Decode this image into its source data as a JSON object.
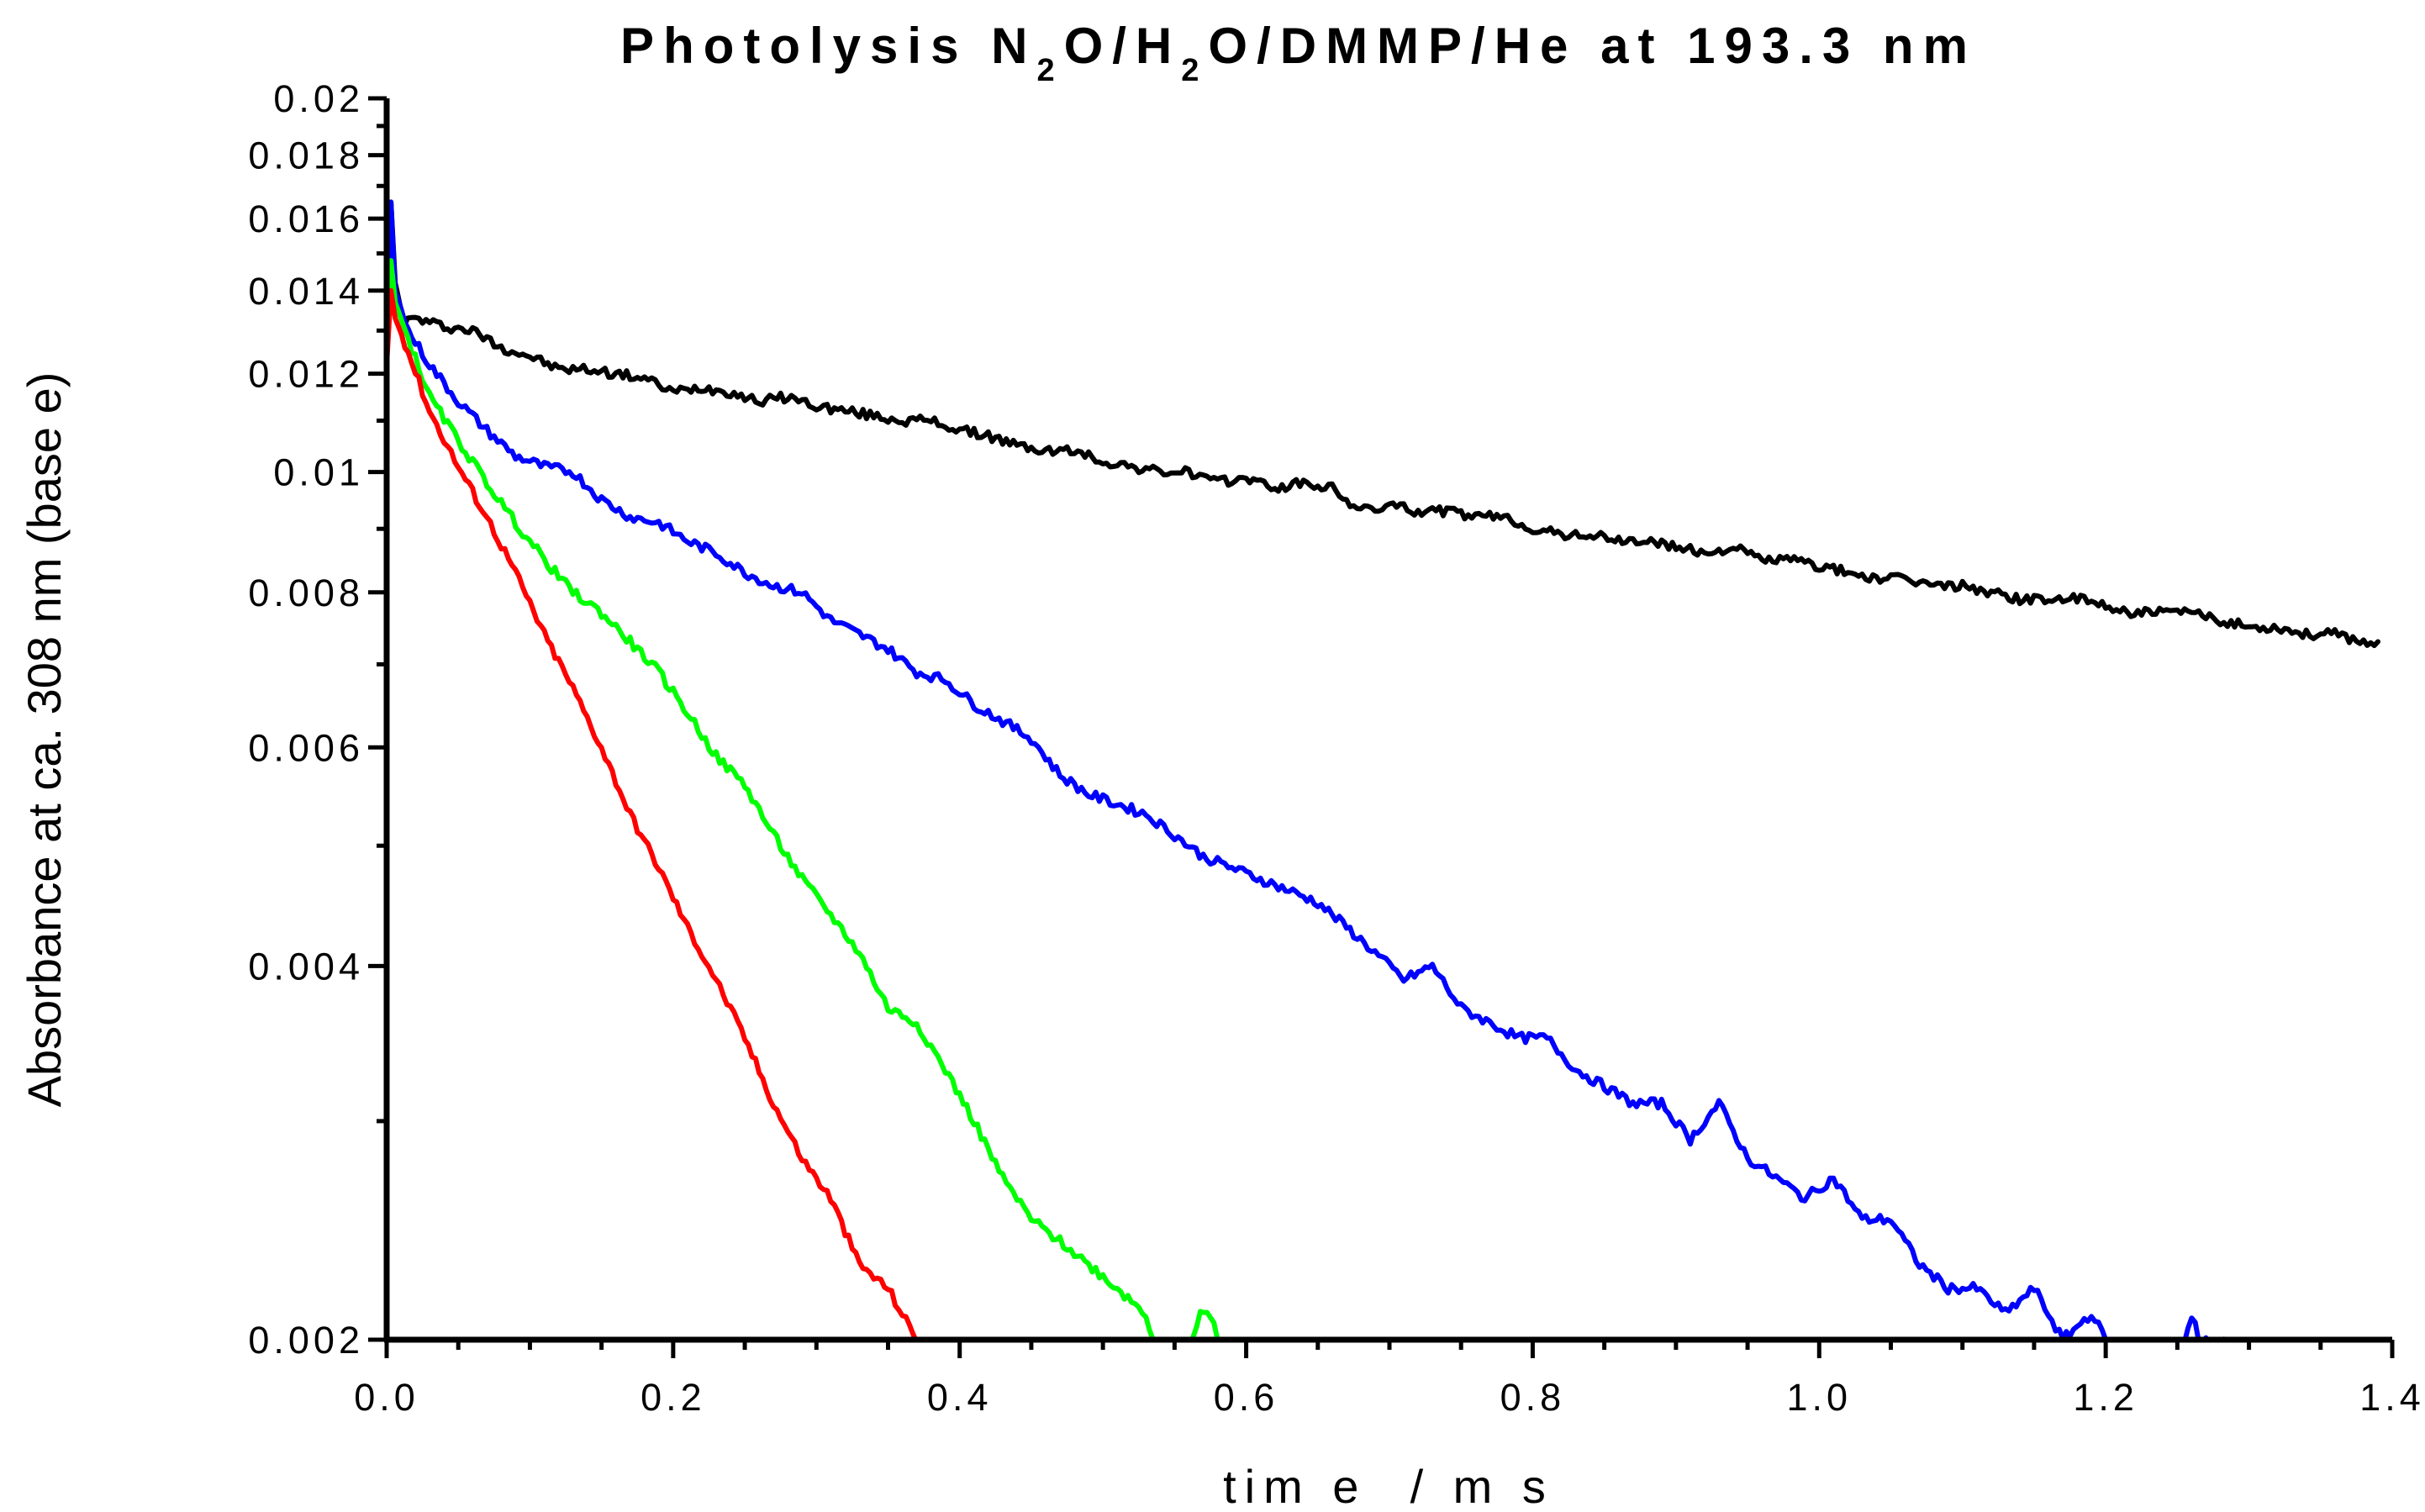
{
  "chart_data": {
    "type": "line",
    "title": {
      "parts": [
        "Photolysis N",
        "2",
        "O/H",
        "2",
        "O/DMMP/He at 193.3 nm"
      ]
    },
    "xlabel": "tim e  / m s",
    "ylabel": "Absorbance at ca. 308 nm (base e)",
    "xlim": [
      0,
      1.4
    ],
    "ylim": [
      0.002,
      0.02
    ],
    "yscale": "log",
    "grid": false,
    "legend": "none",
    "x_ticks": [
      0,
      0.2,
      0.4,
      0.6,
      0.8,
      1.0,
      1.2,
      1.4
    ],
    "x_tick_labels": [
      "0.0",
      "0.2",
      "0.4",
      "0.6",
      "0.8",
      "1.0",
      "1.2",
      "1.4"
    ],
    "y_ticks": [
      0.002,
      0.004,
      0.006,
      0.008,
      0.01,
      0.012,
      0.014,
      0.016,
      0.018,
      0.02
    ],
    "y_tick_labels": [
      "0.002",
      "0.004",
      "0.006",
      "0.008",
      "0.01",
      "0.012",
      "0.014",
      "0.016",
      "0.018",
      "0.02"
    ],
    "series": [
      {
        "name": "black",
        "color": "#000000",
        "points": [
          [
            0.0,
            0.0125
          ],
          [
            0.003,
            0.0165
          ],
          [
            0.006,
            0.0142
          ],
          [
            0.012,
            0.0132
          ],
          [
            0.02,
            0.0133
          ],
          [
            0.04,
            0.0131
          ],
          [
            0.06,
            0.013
          ],
          [
            0.08,
            0.0126
          ],
          [
            0.1,
            0.0124
          ],
          [
            0.12,
            0.0121
          ],
          [
            0.14,
            0.0121
          ],
          [
            0.16,
            0.012
          ],
          [
            0.18,
            0.0119
          ],
          [
            0.2,
            0.0116
          ],
          [
            0.22,
            0.0117
          ],
          [
            0.24,
            0.0116
          ],
          [
            0.26,
            0.0114
          ],
          [
            0.28,
            0.0115
          ],
          [
            0.3,
            0.0113
          ],
          [
            0.32,
            0.0112
          ],
          [
            0.34,
            0.0111
          ],
          [
            0.36,
            0.011
          ],
          [
            0.38,
            0.011
          ],
          [
            0.4,
            0.0108
          ],
          [
            0.42,
            0.0107
          ],
          [
            0.44,
            0.0105
          ],
          [
            0.46,
            0.0104
          ],
          [
            0.48,
            0.0104
          ],
          [
            0.5,
            0.0102
          ],
          [
            0.52,
            0.0101
          ],
          [
            0.54,
            0.01
          ],
          [
            0.56,
            0.01
          ],
          [
            0.58,
            0.0098
          ],
          [
            0.6,
            0.0099
          ],
          [
            0.62,
            0.0097
          ],
          [
            0.64,
            0.0098
          ],
          [
            0.66,
            0.0097
          ],
          [
            0.68,
            0.0093
          ],
          [
            0.7,
            0.0094
          ],
          [
            0.72,
            0.0093
          ],
          [
            0.74,
            0.0093
          ],
          [
            0.76,
            0.0092
          ],
          [
            0.78,
            0.0092
          ],
          [
            0.8,
            0.009
          ],
          [
            0.82,
            0.0089
          ],
          [
            0.84,
            0.0089
          ],
          [
            0.86,
            0.0088
          ],
          [
            0.88,
            0.0088
          ],
          [
            0.9,
            0.0087
          ],
          [
            0.92,
            0.0086
          ],
          [
            0.94,
            0.0087
          ],
          [
            0.96,
            0.0085
          ],
          [
            0.98,
            0.0085
          ],
          [
            1.0,
            0.0084
          ],
          [
            1.02,
            0.0083
          ],
          [
            1.04,
            0.0082
          ],
          [
            1.06,
            0.0082
          ],
          [
            1.08,
            0.0081
          ],
          [
            1.1,
            0.0081
          ],
          [
            1.12,
            0.008
          ],
          [
            1.14,
            0.0079
          ],
          [
            1.16,
            0.0079
          ],
          [
            1.18,
            0.0079
          ],
          [
            1.2,
            0.0078
          ],
          [
            1.22,
            0.0077
          ],
          [
            1.24,
            0.0077
          ],
          [
            1.26,
            0.0077
          ],
          [
            1.28,
            0.0076
          ],
          [
            1.3,
            0.0075
          ],
          [
            1.32,
            0.0075
          ],
          [
            1.34,
            0.0074
          ],
          [
            1.36,
            0.0074
          ],
          [
            1.38,
            0.0073
          ],
          [
            1.39,
            0.0073
          ]
        ]
      },
      {
        "name": "blue",
        "color": "#0000ff",
        "points": [
          [
            0.0,
            0.013
          ],
          [
            0.003,
            0.0165
          ],
          [
            0.006,
            0.014
          ],
          [
            0.015,
            0.013
          ],
          [
            0.03,
            0.0122
          ],
          [
            0.05,
            0.0114
          ],
          [
            0.07,
            0.0108
          ],
          [
            0.09,
            0.0103
          ],
          [
            0.11,
            0.0101
          ],
          [
            0.13,
            0.01
          ],
          [
            0.15,
            0.0095
          ],
          [
            0.17,
            0.0092
          ],
          [
            0.19,
            0.0091
          ],
          [
            0.21,
            0.0088
          ],
          [
            0.23,
            0.0086
          ],
          [
            0.25,
            0.0083
          ],
          [
            0.27,
            0.0081
          ],
          [
            0.29,
            0.008
          ],
          [
            0.31,
            0.0076
          ],
          [
            0.33,
            0.0074
          ],
          [
            0.35,
            0.0072
          ],
          [
            0.37,
            0.0069
          ],
          [
            0.39,
            0.0068
          ],
          [
            0.41,
            0.0065
          ],
          [
            0.43,
            0.0063
          ],
          [
            0.45,
            0.0061
          ],
          [
            0.47,
            0.0057
          ],
          [
            0.49,
            0.0055
          ],
          [
            0.51,
            0.0054
          ],
          [
            0.53,
            0.0053
          ],
          [
            0.55,
            0.0051
          ],
          [
            0.57,
            0.0049
          ],
          [
            0.59,
            0.0048
          ],
          [
            0.61,
            0.0047
          ],
          [
            0.63,
            0.0046
          ],
          [
            0.65,
            0.0045
          ],
          [
            0.67,
            0.0043
          ],
          [
            0.69,
            0.0041
          ],
          [
            0.71,
            0.0039
          ],
          [
            0.73,
            0.004
          ],
          [
            0.75,
            0.0037
          ],
          [
            0.77,
            0.0036
          ],
          [
            0.79,
            0.0035
          ],
          [
            0.81,
            0.0035
          ],
          [
            0.83,
            0.0033
          ],
          [
            0.85,
            0.0032
          ],
          [
            0.87,
            0.0031
          ],
          [
            0.89,
            0.0031
          ],
          [
            0.91,
            0.0029
          ],
          [
            0.93,
            0.0031
          ],
          [
            0.95,
            0.0028
          ],
          [
            0.97,
            0.0027
          ],
          [
            0.99,
            0.0026
          ],
          [
            1.01,
            0.0027
          ],
          [
            1.03,
            0.0025
          ],
          [
            1.05,
            0.0025
          ],
          [
            1.07,
            0.0023
          ],
          [
            1.09,
            0.0022
          ],
          [
            1.11,
            0.0022
          ],
          [
            1.13,
            0.0021
          ],
          [
            1.15,
            0.0022
          ],
          [
            1.17,
            0.002
          ],
          [
            1.19,
            0.0021
          ],
          [
            1.2,
            0.002
          ]
        ]
      },
      {
        "name": "green",
        "color": "#00ff00",
        "points": [
          [
            0.0,
            0.0125
          ],
          [
            0.003,
            0.0148
          ],
          [
            0.006,
            0.0137
          ],
          [
            0.015,
            0.0128
          ],
          [
            0.03,
            0.0115
          ],
          [
            0.05,
            0.0106
          ],
          [
            0.07,
            0.0098
          ],
          [
            0.09,
            0.0091
          ],
          [
            0.11,
            0.0085
          ],
          [
            0.13,
            0.008
          ],
          [
            0.15,
            0.0077
          ],
          [
            0.17,
            0.0073
          ],
          [
            0.19,
            0.0069
          ],
          [
            0.21,
            0.0064
          ],
          [
            0.23,
            0.0059
          ],
          [
            0.25,
            0.0056
          ],
          [
            0.27,
            0.0051
          ],
          [
            0.29,
            0.0047
          ],
          [
            0.31,
            0.0044
          ],
          [
            0.33,
            0.0041
          ],
          [
            0.35,
            0.0037
          ],
          [
            0.37,
            0.0036
          ],
          [
            0.39,
            0.0033
          ],
          [
            0.41,
            0.003
          ],
          [
            0.43,
            0.0027
          ],
          [
            0.45,
            0.0025
          ],
          [
            0.47,
            0.0024
          ],
          [
            0.49,
            0.0023
          ],
          [
            0.51,
            0.0022
          ],
          [
            0.53,
            0.0021
          ],
          [
            0.535,
            0.002
          ]
        ]
      },
      {
        "name": "green-fragment",
        "color": "#00ff00",
        "points": [
          [
            0.563,
            0.002
          ],
          [
            0.568,
            0.0021
          ],
          [
            0.575,
            0.0021
          ],
          [
            0.58,
            0.002
          ]
        ]
      },
      {
        "name": "red",
        "color": "#ff0000",
        "points": [
          [
            0.0,
            0.0122
          ],
          [
            0.003,
            0.014
          ],
          [
            0.006,
            0.0133
          ],
          [
            0.015,
            0.0125
          ],
          [
            0.03,
            0.0112
          ],
          [
            0.05,
            0.0101
          ],
          [
            0.07,
            0.0092
          ],
          [
            0.09,
            0.0083
          ],
          [
            0.11,
            0.0074
          ],
          [
            0.13,
            0.0067
          ],
          [
            0.15,
            0.006
          ],
          [
            0.17,
            0.0053
          ],
          [
            0.19,
            0.0048
          ],
          [
            0.21,
            0.0043
          ],
          [
            0.23,
            0.0039
          ],
          [
            0.25,
            0.0035
          ],
          [
            0.27,
            0.0031
          ],
          [
            0.29,
            0.0028
          ],
          [
            0.31,
            0.0026
          ],
          [
            0.33,
            0.0023
          ],
          [
            0.35,
            0.0022
          ],
          [
            0.37,
            0.002
          ],
          [
            0.375,
            0.002
          ]
        ]
      },
      {
        "name": "blue-fragment",
        "color": "#0000ff",
        "points": [
          [
            1.255,
            0.002
          ],
          [
            1.26,
            0.0021
          ],
          [
            1.265,
            0.002
          ],
          [
            1.275,
            0.002
          ],
          [
            1.285,
            0.002
          ],
          [
            1.29,
            0.002
          ]
        ]
      }
    ]
  }
}
